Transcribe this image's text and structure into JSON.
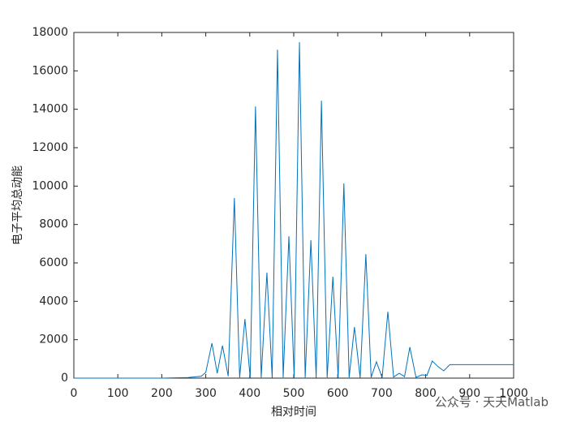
{
  "chart_data": {
    "type": "line",
    "xlabel": "相对时间",
    "ylabel": "电子平均总动能",
    "watermark": "公众号 · 天天Matlab",
    "series": [
      {
        "color": "#0072bd",
        "x": [
          0,
          200,
          260,
          290,
          300,
          314,
          326,
          338,
          351,
          365,
          377,
          389,
          401,
          413,
          426,
          439,
          451,
          463,
          476,
          489,
          501,
          513,
          526,
          539,
          551,
          563,
          576,
          589,
          601,
          614,
          626,
          638,
          651,
          664,
          676,
          688,
          701,
          714,
          727,
          740,
          752,
          764,
          778,
          791,
          803,
          815,
          828,
          841,
          855,
          1000
        ],
        "values": [
          0,
          0,
          30,
          100,
          300,
          1820,
          250,
          1690,
          100,
          9380,
          30,
          3080,
          20,
          14150,
          30,
          5490,
          20,
          17100,
          30,
          7390,
          20,
          17490,
          30,
          7180,
          20,
          14450,
          30,
          5280,
          20,
          10140,
          30,
          2660,
          20,
          6460,
          40,
          850,
          30,
          3460,
          60,
          250,
          80,
          1610,
          40,
          170,
          150,
          890,
          600,
          380,
          700,
          700
        ]
      }
    ],
    "xlim": [
      0,
      1000
    ],
    "xticks": [
      0,
      100,
      200,
      300,
      400,
      500,
      600,
      700,
      800,
      900,
      1000
    ],
    "ylim": [
      0,
      18000
    ],
    "yticks": [
      0,
      2000,
      4000,
      6000,
      8000,
      10000,
      12000,
      14000,
      16000,
      18000
    ]
  }
}
